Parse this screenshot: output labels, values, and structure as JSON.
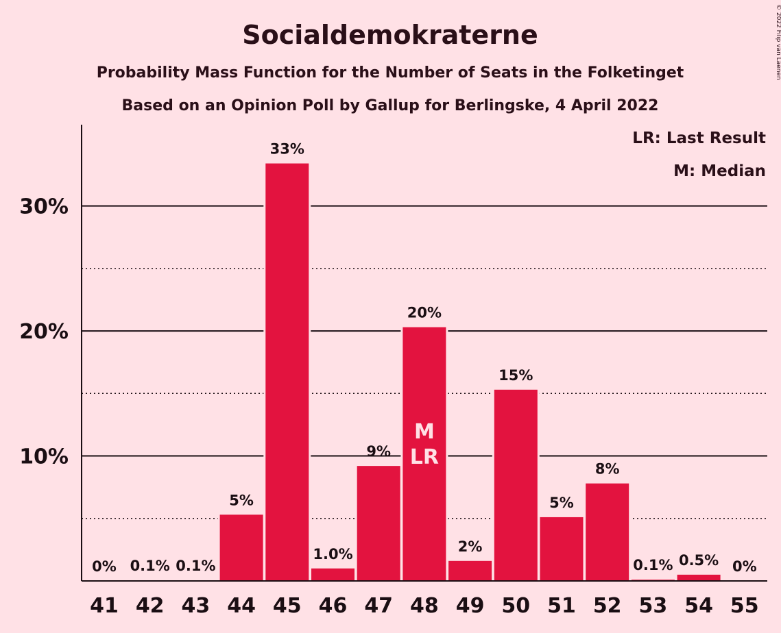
{
  "chart_data": {
    "type": "bar",
    "title": "Socialdemokraterne",
    "subtitle": "Probability Mass Function for the Number of Seats in the Folketinget",
    "source_line": "Based on an Opinion Poll by Gallup for Berlingske, 4 April 2022",
    "copyright": "© 2022 Filip van Laenen",
    "legend": [
      "LR: Last Result",
      "M: Median"
    ],
    "categories": [
      "41",
      "42",
      "43",
      "44",
      "45",
      "46",
      "47",
      "48",
      "49",
      "50",
      "51",
      "52",
      "53",
      "54",
      "55"
    ],
    "values": [
      0,
      0.05,
      0.05,
      5.3,
      33.4,
      1.0,
      9.2,
      20.3,
      1.6,
      15.3,
      5.1,
      7.8,
      0.1,
      0.5,
      0
    ],
    "value_labels": [
      "0%",
      "0.1%",
      "0.1%",
      "5%",
      "33%",
      "1.0%",
      "9%",
      "20%",
      "2%",
      "15%",
      "5%",
      "8%",
      "0.1%",
      "0.5%",
      "0%"
    ],
    "markers": [
      {
        "category": "48",
        "lines": [
          "M",
          "LR"
        ]
      }
    ],
    "ylim": [
      0,
      36.5
    ],
    "yticks": [
      10,
      20,
      30
    ],
    "ytick_labels": [
      "10%",
      "20%",
      "30%"
    ],
    "minor_gridlines": [
      5,
      15,
      25
    ],
    "grid": true,
    "legend_position": "top-right",
    "colors": {
      "background": "#ffe1e6",
      "bar": "#e3133f",
      "text": "#1a0e13",
      "marker_text": "#ffe1e6"
    }
  }
}
